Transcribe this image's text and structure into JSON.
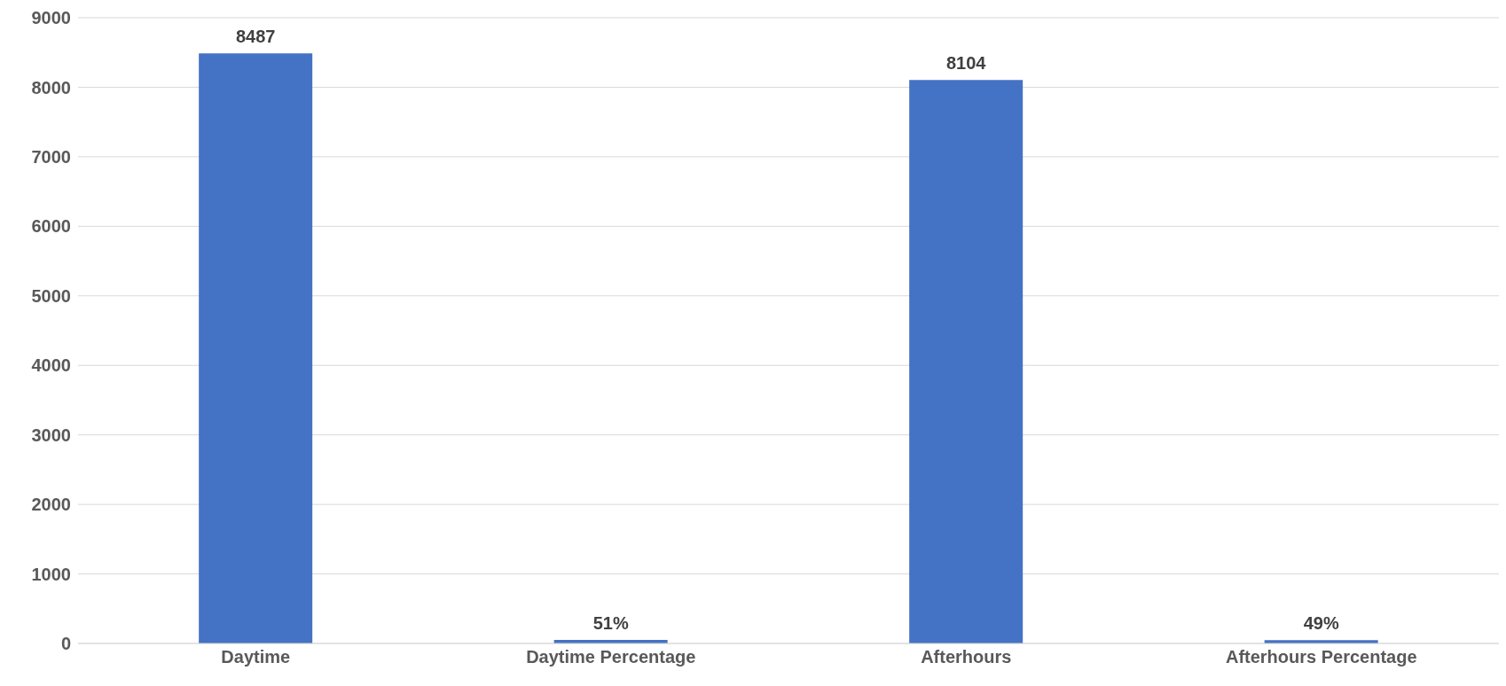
{
  "chart_data": {
    "type": "bar",
    "categories": [
      "Daytime",
      "Daytime Percentage",
      "Afterhours",
      "Afterhours Percentage"
    ],
    "values": [
      8487,
      51,
      8104,
      49
    ],
    "value_labels": [
      "8487",
      "51%",
      "8104",
      "49%"
    ],
    "color": "#4472c4",
    "ylim": [
      0,
      9000
    ],
    "yticks": [
      0,
      1000,
      2000,
      3000,
      4000,
      5000,
      6000,
      7000,
      8000,
      9000
    ],
    "grid": "y"
  }
}
